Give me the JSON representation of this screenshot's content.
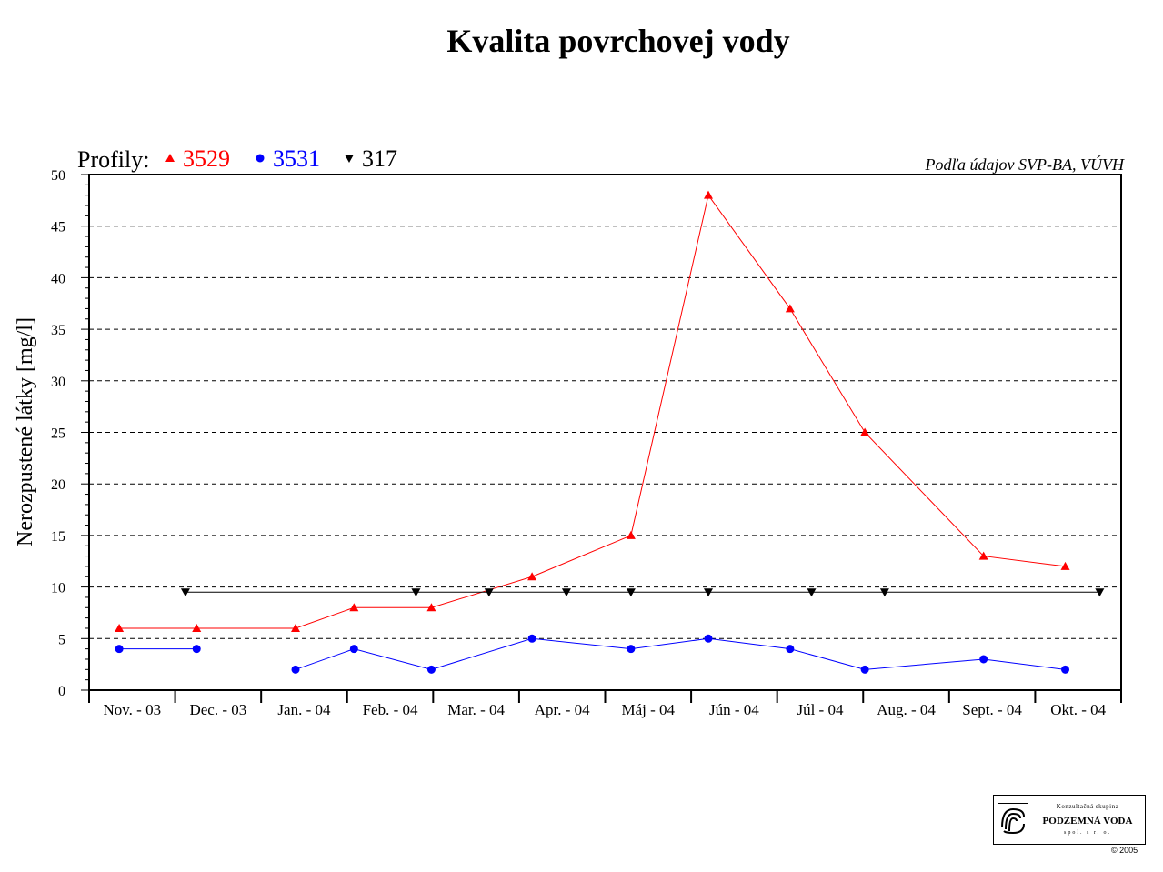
{
  "chart_data": {
    "type": "line",
    "title": "Kvalita povrchovej vody",
    "source_note": "Podľa údajov SVP-BA, VÚVH",
    "legend_label": "Profily:",
    "ylabel": "Nerozpustené látky [mg/l]",
    "ylim": [
      0,
      50
    ],
    "y_ticks": [
      0,
      5,
      10,
      15,
      20,
      25,
      30,
      35,
      40,
      45,
      50
    ],
    "grid": "horizontal dashed at major ticks",
    "legend_position": "top-left",
    "categories": [
      "Nov. - 03",
      "Dec. - 03",
      "Jan. - 04",
      "Feb. - 04",
      "Mar. - 04",
      "Apr. - 04",
      "Máj - 04",
      "Jún - 04",
      "Júl - 04",
      "Aug. - 04",
      "Sept. - 04",
      "Okt. - 04"
    ],
    "series": [
      {
        "name": "3529",
        "color": "#ff0000",
        "marker": "triangle-up",
        "points": [
          {
            "x": "Nov. - 03",
            "pos": 0.35,
            "y": 6
          },
          {
            "x": "Dec. - 03",
            "pos": 1.25,
            "y": 6
          },
          {
            "x": "Jan. - 04",
            "pos": 2.4,
            "y": 6
          },
          {
            "x": "Feb. - 04",
            "pos": 3.08,
            "y": 8
          },
          {
            "x": "Mar. - 04",
            "pos": 3.98,
            "y": 8
          },
          {
            "x": "Apr. - 04",
            "pos": 5.15,
            "y": 11
          },
          {
            "x": "Máj - 04",
            "pos": 6.3,
            "y": 15
          },
          {
            "x": "Jún - 04",
            "pos": 7.2,
            "y": 48
          },
          {
            "x": "Júl - 04",
            "pos": 8.15,
            "y": 37
          },
          {
            "x": "Aug. - 04",
            "pos": 9.02,
            "y": 25
          },
          {
            "x": "Sept. - 04",
            "pos": 10.4,
            "y": 13
          },
          {
            "x": "Okt. - 04",
            "pos": 11.35,
            "y": 12
          }
        ]
      },
      {
        "name": "3531",
        "color": "#0000ff",
        "marker": "circle",
        "points": [
          {
            "x": "Nov. - 03",
            "pos": 0.35,
            "y": 4
          },
          {
            "x": "Dec. - 03",
            "pos": 1.25,
            "y": 4,
            "break_after": true
          },
          {
            "x": "Jan. - 04",
            "pos": 2.4,
            "y": 2
          },
          {
            "x": "Feb. - 04",
            "pos": 3.08,
            "y": 4
          },
          {
            "x": "Mar. - 04",
            "pos": 3.98,
            "y": 2
          },
          {
            "x": "Apr. - 04",
            "pos": 5.15,
            "y": 5
          },
          {
            "x": "Máj - 04",
            "pos": 6.3,
            "y": 4
          },
          {
            "x": "Jún - 04",
            "pos": 7.2,
            "y": 5
          },
          {
            "x": "Júl - 04",
            "pos": 8.15,
            "y": 4
          },
          {
            "x": "Aug. - 04",
            "pos": 9.02,
            "y": 2
          },
          {
            "x": "Sept. - 04",
            "pos": 10.4,
            "y": 3
          },
          {
            "x": "Okt. - 04",
            "pos": 11.35,
            "y": 2
          }
        ]
      },
      {
        "name": "317",
        "color": "#000000",
        "marker": "triangle-down",
        "points": [
          {
            "x": "Dec. - 03",
            "pos": 1.12,
            "y": 9.5
          },
          {
            "x": "Feb. - 04",
            "pos": 3.8,
            "y": 9.5
          },
          {
            "x": "Mar. - 04",
            "pos": 4.65,
            "y": 9.5
          },
          {
            "x": "Apr. - 04",
            "pos": 5.55,
            "y": 9.5
          },
          {
            "x": "Máj - 04",
            "pos": 6.3,
            "y": 9.5
          },
          {
            "x": "Jún - 04",
            "pos": 7.2,
            "y": 9.5
          },
          {
            "x": "Júl - 04",
            "pos": 8.4,
            "y": 9.5
          },
          {
            "x": "Aug. - 04",
            "pos": 9.25,
            "y": 9.5
          },
          {
            "x": "Okt. - 04",
            "pos": 11.75,
            "y": 9.5
          }
        ]
      }
    ]
  },
  "logo": {
    "line1": "Konzultačná skupina",
    "line2": "PODZEMNÁ VODA",
    "line3": "spol. s r. o."
  },
  "copyright": "© 2005"
}
